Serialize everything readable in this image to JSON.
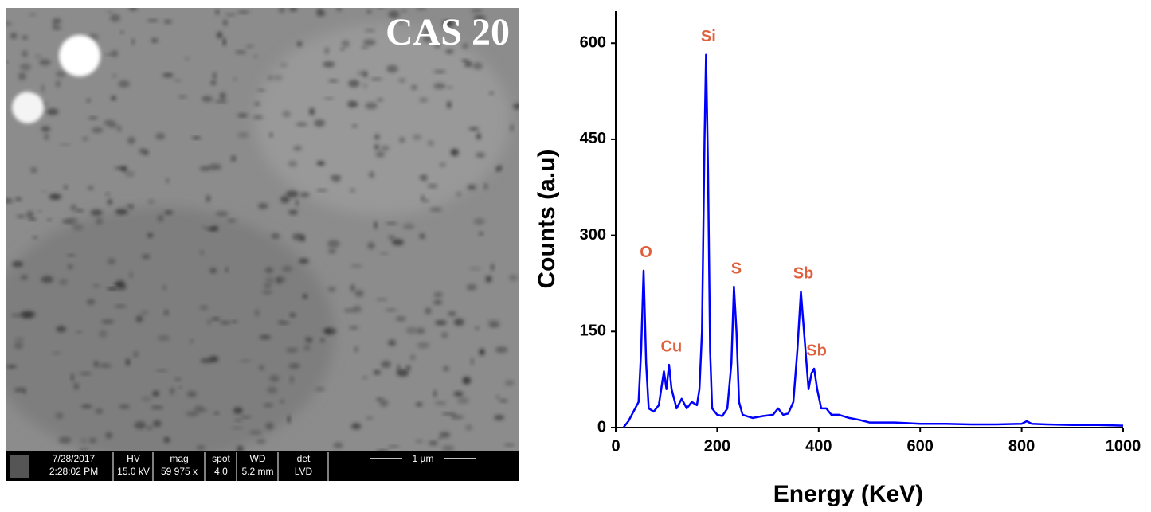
{
  "image": {
    "label": "CAS 20",
    "info": [
      [
        "7/28/2017",
        "2:28:02 PM"
      ],
      [
        "HV",
        "15.0 kV"
      ],
      [
        "mag",
        "59 975 x"
      ],
      [
        "spot",
        "4.0"
      ],
      [
        "WD",
        "5.2 mm"
      ],
      [
        "det",
        "LVD"
      ]
    ],
    "scale_bar": "1 µm"
  },
  "chart_data": {
    "type": "line",
    "xlabel": "Energy (KeV)",
    "ylabel": "Counts (a.u)",
    "color": "#0000ff",
    "x": [
      15,
      25,
      35,
      45,
      50,
      55,
      60,
      65,
      75,
      85,
      95,
      100,
      105,
      110,
      120,
      130,
      140,
      150,
      160,
      165,
      170,
      175,
      178,
      182,
      186,
      190,
      200,
      210,
      220,
      228,
      233,
      238,
      243,
      250,
      270,
      290,
      310,
      320,
      330,
      340,
      350,
      358,
      365,
      372,
      380,
      386,
      391,
      397,
      405,
      415,
      425,
      440,
      460,
      480,
      500,
      550,
      600,
      650,
      700,
      750,
      800,
      810,
      820,
      850,
      900,
      950,
      1000
    ],
    "values": [
      0,
      10,
      25,
      40,
      120,
      245,
      100,
      30,
      25,
      35,
      88,
      60,
      98,
      60,
      30,
      45,
      30,
      40,
      35,
      60,
      150,
      450,
      582,
      400,
      120,
      30,
      20,
      18,
      30,
      100,
      220,
      150,
      40,
      20,
      15,
      18,
      20,
      30,
      20,
      22,
      40,
      120,
      212,
      140,
      60,
      85,
      92,
      60,
      30,
      30,
      20,
      20,
      15,
      12,
      8,
      8,
      6,
      6,
      5,
      5,
      6,
      10,
      6,
      5,
      4,
      4,
      3
    ],
    "xlim": [
      0,
      1000
    ],
    "xticks": [
      0,
      200,
      400,
      600,
      800,
      1000
    ],
    "ylim": [
      0,
      650
    ],
    "yticks": [
      0,
      150,
      300,
      450,
      600
    ],
    "annotations": [
      {
        "text": "O",
        "x": 55,
        "y": 245
      },
      {
        "text": "Cu",
        "x": 105,
        "y": 98
      },
      {
        "text": "Si",
        "x": 178,
        "y": 582
      },
      {
        "text": "S",
        "x": 233,
        "y": 220
      },
      {
        "text": "Sb",
        "x": 365,
        "y": 212
      },
      {
        "text": "Sb",
        "x": 391,
        "y": 92
      }
    ]
  }
}
